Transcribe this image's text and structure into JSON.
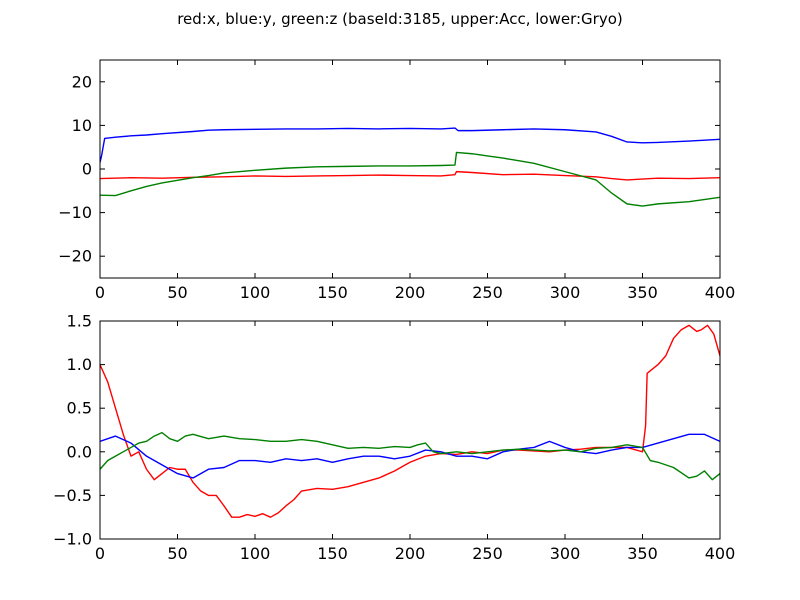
{
  "title": "red:x, blue:y, green:z (baseId:3185, upper:Acc, lower:Gryo)",
  "chart_data": [
    {
      "type": "line",
      "xlim": [
        0,
        400
      ],
      "ylim": [
        -25,
        25
      ],
      "xticks": [
        0,
        50,
        100,
        150,
        200,
        250,
        300,
        350,
        400
      ],
      "yticks": [
        -20,
        -10,
        0,
        10,
        20
      ],
      "xtick_labels": [
        "0",
        "50",
        "100",
        "150",
        "200",
        "250",
        "300",
        "350",
        "400"
      ],
      "ytick_labels": [
        "−20",
        "−10",
        "0",
        "10",
        "20"
      ],
      "grid": false,
      "series": [
        {
          "color": "#ff0000",
          "x": [
            0,
            20,
            40,
            60,
            80,
            100,
            120,
            140,
            160,
            180,
            200,
            220,
            229,
            230,
            240,
            260,
            280,
            300,
            320,
            330,
            340,
            360,
            380,
            400
          ],
          "y": [
            -2.2,
            -2.0,
            -2.1,
            -1.9,
            -1.8,
            -1.6,
            -1.7,
            -1.6,
            -1.5,
            -1.4,
            -1.5,
            -1.6,
            -1.3,
            -0.6,
            -0.8,
            -1.3,
            -1.2,
            -1.5,
            -1.8,
            -2.2,
            -2.5,
            -2.1,
            -2.2,
            -2.0
          ]
        },
        {
          "color": "#0000ff",
          "x": [
            0,
            1,
            3,
            10,
            20,
            30,
            40,
            60,
            70,
            80,
            100,
            120,
            140,
            160,
            180,
            200,
            220,
            229,
            231,
            240,
            260,
            280,
            300,
            320,
            330,
            340,
            350,
            360,
            380,
            400
          ],
          "y": [
            1.5,
            3.0,
            7.0,
            7.3,
            7.6,
            7.8,
            8.1,
            8.6,
            8.9,
            9.0,
            9.1,
            9.2,
            9.2,
            9.3,
            9.2,
            9.3,
            9.2,
            9.4,
            8.8,
            8.8,
            9.0,
            9.2,
            9.0,
            8.5,
            7.5,
            6.2,
            6.0,
            6.1,
            6.4,
            6.8
          ]
        },
        {
          "color": "#008000",
          "x": [
            0,
            10,
            20,
            30,
            40,
            50,
            60,
            70,
            80,
            100,
            120,
            140,
            160,
            180,
            200,
            220,
            229,
            230,
            240,
            250,
            260,
            270,
            280,
            300,
            320,
            330,
            340,
            350,
            360,
            380,
            400
          ],
          "y": [
            -6.0,
            -6.1,
            -5.0,
            -4.0,
            -3.2,
            -2.6,
            -2.0,
            -1.5,
            -0.9,
            -0.3,
            0.2,
            0.5,
            0.6,
            0.7,
            0.7,
            0.8,
            0.9,
            3.8,
            3.5,
            3.0,
            2.5,
            1.9,
            1.3,
            -0.6,
            -2.5,
            -5.5,
            -8.0,
            -8.5,
            -8.0,
            -7.5,
            -6.5
          ]
        }
      ]
    },
    {
      "type": "line",
      "xlim": [
        0,
        400
      ],
      "ylim": [
        -1.0,
        1.5
      ],
      "xticks": [
        0,
        50,
        100,
        150,
        200,
        250,
        300,
        350,
        400
      ],
      "yticks": [
        -1.0,
        -0.5,
        0.0,
        0.5,
        1.0,
        1.5
      ],
      "xtick_labels": [
        "0",
        "50",
        "100",
        "150",
        "200",
        "250",
        "300",
        "350",
        "400"
      ],
      "ytick_labels": [
        "−1.0",
        "−0.5",
        "0.0",
        "0.5",
        "1.0",
        "1.5"
      ],
      "grid": false,
      "series": [
        {
          "color": "#ff0000",
          "x": [
            0,
            5,
            10,
            15,
            20,
            25,
            30,
            35,
            40,
            45,
            50,
            55,
            60,
            65,
            70,
            75,
            80,
            85,
            90,
            95,
            100,
            105,
            110,
            115,
            120,
            125,
            130,
            140,
            150,
            160,
            170,
            180,
            190,
            200,
            210,
            220,
            230,
            240,
            250,
            260,
            270,
            280,
            290,
            300,
            310,
            320,
            330,
            340,
            350,
            352,
            353,
            360,
            365,
            370,
            375,
            380,
            385,
            388,
            392,
            396,
            400
          ],
          "y": [
            1.0,
            0.8,
            0.5,
            0.2,
            -0.05,
            0.0,
            -0.2,
            -0.32,
            -0.25,
            -0.18,
            -0.2,
            -0.2,
            -0.35,
            -0.45,
            -0.5,
            -0.5,
            -0.62,
            -0.75,
            -0.75,
            -0.72,
            -0.74,
            -0.71,
            -0.75,
            -0.7,
            -0.62,
            -0.55,
            -0.45,
            -0.42,
            -0.43,
            -0.4,
            -0.35,
            -0.3,
            -0.22,
            -0.12,
            -0.05,
            -0.02,
            -0.03,
            0.0,
            -0.02,
            0.02,
            0.02,
            0.01,
            0.0,
            0.02,
            0.03,
            0.05,
            0.05,
            0.05,
            0.0,
            0.3,
            0.9,
            1.0,
            1.1,
            1.3,
            1.4,
            1.45,
            1.38,
            1.4,
            1.45,
            1.35,
            1.1
          ]
        },
        {
          "color": "#0000ff",
          "x": [
            0,
            5,
            10,
            20,
            30,
            40,
            50,
            60,
            70,
            80,
            90,
            100,
            110,
            120,
            130,
            140,
            150,
            160,
            170,
            180,
            190,
            200,
            210,
            220,
            230,
            240,
            250,
            260,
            270,
            280,
            290,
            300,
            310,
            320,
            330,
            340,
            350,
            360,
            370,
            380,
            390,
            400
          ],
          "y": [
            0.12,
            0.15,
            0.18,
            0.1,
            -0.05,
            -0.15,
            -0.25,
            -0.3,
            -0.2,
            -0.18,
            -0.1,
            -0.1,
            -0.12,
            -0.08,
            -0.1,
            -0.08,
            -0.12,
            -0.08,
            -0.05,
            -0.05,
            -0.08,
            -0.05,
            0.02,
            0.0,
            -0.05,
            -0.05,
            -0.08,
            0.0,
            0.03,
            0.05,
            0.12,
            0.05,
            0.0,
            -0.02,
            0.02,
            0.05,
            0.05,
            0.1,
            0.15,
            0.2,
            0.2,
            0.12
          ]
        },
        {
          "color": "#008000",
          "x": [
            0,
            5,
            10,
            15,
            20,
            25,
            30,
            35,
            40,
            45,
            50,
            55,
            60,
            70,
            80,
            90,
            100,
            110,
            120,
            130,
            140,
            150,
            160,
            170,
            180,
            190,
            200,
            205,
            210,
            215,
            220,
            230,
            240,
            250,
            260,
            270,
            280,
            290,
            300,
            310,
            320,
            330,
            340,
            350,
            355,
            360,
            370,
            380,
            385,
            390,
            395,
            400
          ],
          "y": [
            -0.2,
            -0.1,
            -0.05,
            0.0,
            0.05,
            0.1,
            0.12,
            0.18,
            0.22,
            0.15,
            0.12,
            0.18,
            0.2,
            0.15,
            0.18,
            0.15,
            0.14,
            0.12,
            0.12,
            0.14,
            0.12,
            0.08,
            0.04,
            0.05,
            0.04,
            0.06,
            0.05,
            0.08,
            0.1,
            0.0,
            -0.02,
            0.0,
            -0.02,
            0.0,
            0.02,
            0.03,
            0.02,
            0.01,
            0.02,
            0.0,
            0.04,
            0.05,
            0.08,
            0.05,
            -0.1,
            -0.12,
            -0.18,
            -0.3,
            -0.28,
            -0.22,
            -0.32,
            -0.25
          ]
        }
      ]
    }
  ]
}
